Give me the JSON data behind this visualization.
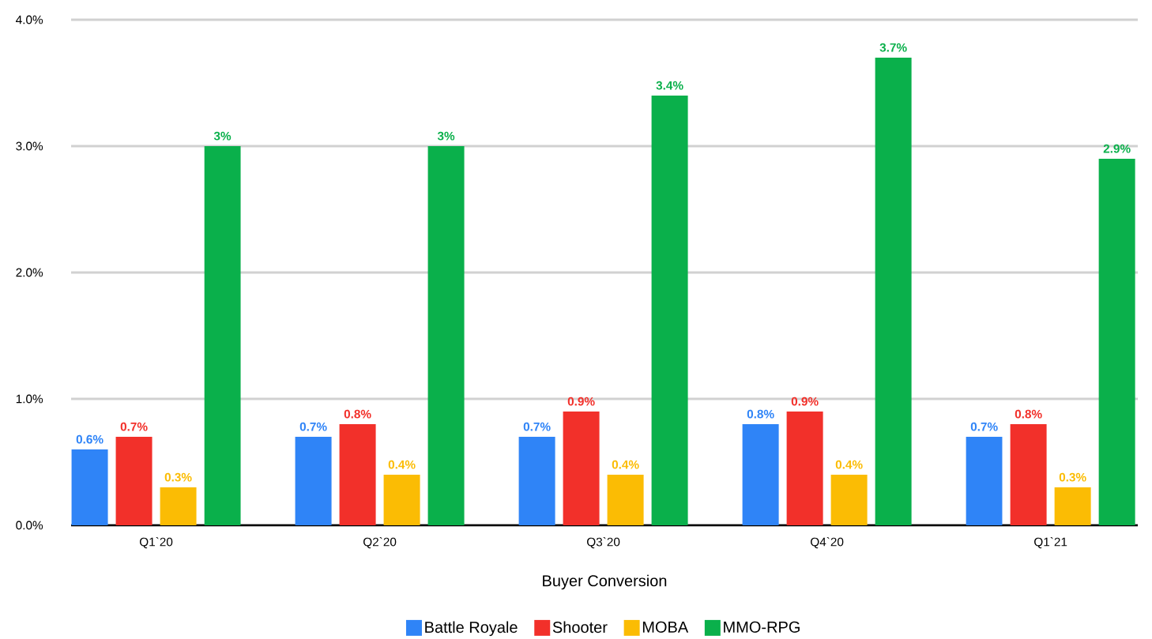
{
  "chart_data": {
    "type": "bar",
    "xlabel": "Buyer Conversion",
    "categories": [
      "Q1`20",
      "Q2`20",
      "Q3`20",
      "Q4`20",
      "Q1`21"
    ],
    "series": [
      {
        "name": "Battle Royale",
        "color": "#2f84f7",
        "values": [
          0.6,
          0.7,
          0.7,
          0.8,
          0.7
        ],
        "value_labels": [
          "0.6%",
          "0.7%",
          "0.7%",
          "0.8%",
          "0.7%"
        ]
      },
      {
        "name": "Shooter",
        "color": "#f2302a",
        "values": [
          0.7,
          0.8,
          0.9,
          0.9,
          0.8
        ],
        "value_labels": [
          "0.7%",
          "0.8%",
          "0.9%",
          "0.9%",
          "0.8%"
        ]
      },
      {
        "name": "MOBA",
        "color": "#fbbc04",
        "values": [
          0.3,
          0.4,
          0.4,
          0.4,
          0.3
        ],
        "value_labels": [
          "0.3%",
          "0.4%",
          "0.4%",
          "0.4%",
          "0.3%"
        ]
      },
      {
        "name": "MMO-RPG",
        "color": "#0ab04b",
        "values": [
          3,
          3,
          3.4,
          3.7,
          2.9
        ],
        "value_labels": [
          "3%",
          "3%",
          "3.4%",
          "3.7%",
          "2.9%"
        ]
      }
    ],
    "ylim": [
      0,
      4
    ],
    "yticks": [
      {
        "value": 0,
        "label": "0.0%"
      },
      {
        "value": 1,
        "label": "1.0%"
      },
      {
        "value": 2,
        "label": "2.0%"
      },
      {
        "value": 3,
        "label": "3.0%"
      },
      {
        "value": 4,
        "label": "4.0%"
      }
    ],
    "grid": "y",
    "legend": "bottom"
  }
}
